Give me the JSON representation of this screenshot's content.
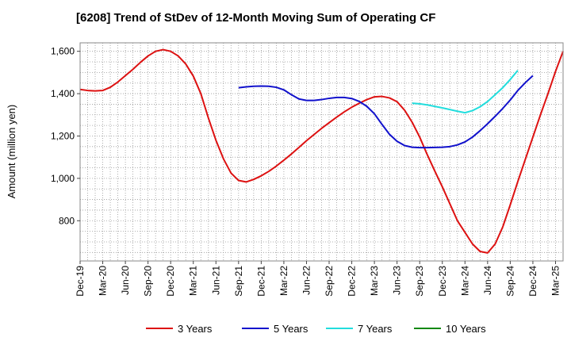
{
  "chart_data": {
    "type": "line",
    "title": "[6208]  Trend of StDev of 12-Month Moving Sum of Operating CF",
    "xlabel": "",
    "ylabel": "Amount (million yen)",
    "ylim": [
      610,
      1640
    ],
    "yticks": [
      800,
      1000,
      1200,
      1400,
      1600
    ],
    "ytick_labels": [
      "800",
      "1,000",
      "1,200",
      "1,400",
      "1,600"
    ],
    "x_tick_labels": [
      "Dec-19",
      "Mar-20",
      "Jun-20",
      "Sep-20",
      "Dec-20",
      "Mar-21",
      "Jun-21",
      "Sep-21",
      "Dec-21",
      "Mar-22",
      "Jun-22",
      "Sep-22",
      "Dec-22",
      "Mar-23",
      "Jun-23",
      "Sep-23",
      "Dec-23",
      "Mar-24",
      "Jun-24",
      "Sep-24",
      "Dec-24",
      "Mar-25"
    ],
    "x_months": 64,
    "grid": true,
    "legend_position": "bottom",
    "series": [
      {
        "name": "3 Years",
        "color": "#dd1111",
        "start_month": 0,
        "values": [
          1420,
          1415,
          1413,
          1415,
          1430,
          1455,
          1485,
          1515,
          1548,
          1578,
          1600,
          1608,
          1600,
          1578,
          1540,
          1483,
          1400,
          1285,
          1180,
          1092,
          1025,
          990,
          983,
          995,
          1012,
          1033,
          1058,
          1086,
          1115,
          1146,
          1178,
          1207,
          1236,
          1263,
          1289,
          1314,
          1336,
          1355,
          1372,
          1385,
          1387,
          1380,
          1362,
          1322,
          1265,
          1195,
          1112,
          1035,
          960,
          880,
          800,
          745,
          690,
          655,
          648,
          690,
          770,
          875,
          985,
          1090,
          1195,
          1300,
          1400,
          1505,
          1600
        ]
      },
      {
        "name": "5 Years",
        "color": "#1111cc",
        "start_month": 21,
        "values": [
          1428,
          1432,
          1435,
          1436,
          1435,
          1430,
          1418,
          1395,
          1375,
          1368,
          1368,
          1372,
          1378,
          1382,
          1382,
          1377,
          1363,
          1340,
          1305,
          1255,
          1208,
          1175,
          1155,
          1147,
          1145,
          1145,
          1146,
          1147,
          1150,
          1158,
          1172,
          1195,
          1225,
          1258,
          1293,
          1330,
          1370,
          1415,
          1452,
          1485
        ]
      },
      {
        "name": "7 Years",
        "color": "#22dddd",
        "start_month": 44,
        "values": [
          1355,
          1352,
          1347,
          1340,
          1333,
          1325,
          1317,
          1310,
          1320,
          1338,
          1363,
          1395,
          1428,
          1467,
          1510
        ]
      },
      {
        "name": "10 Years",
        "color": "#118811",
        "start_month": 0,
        "values": []
      }
    ]
  }
}
